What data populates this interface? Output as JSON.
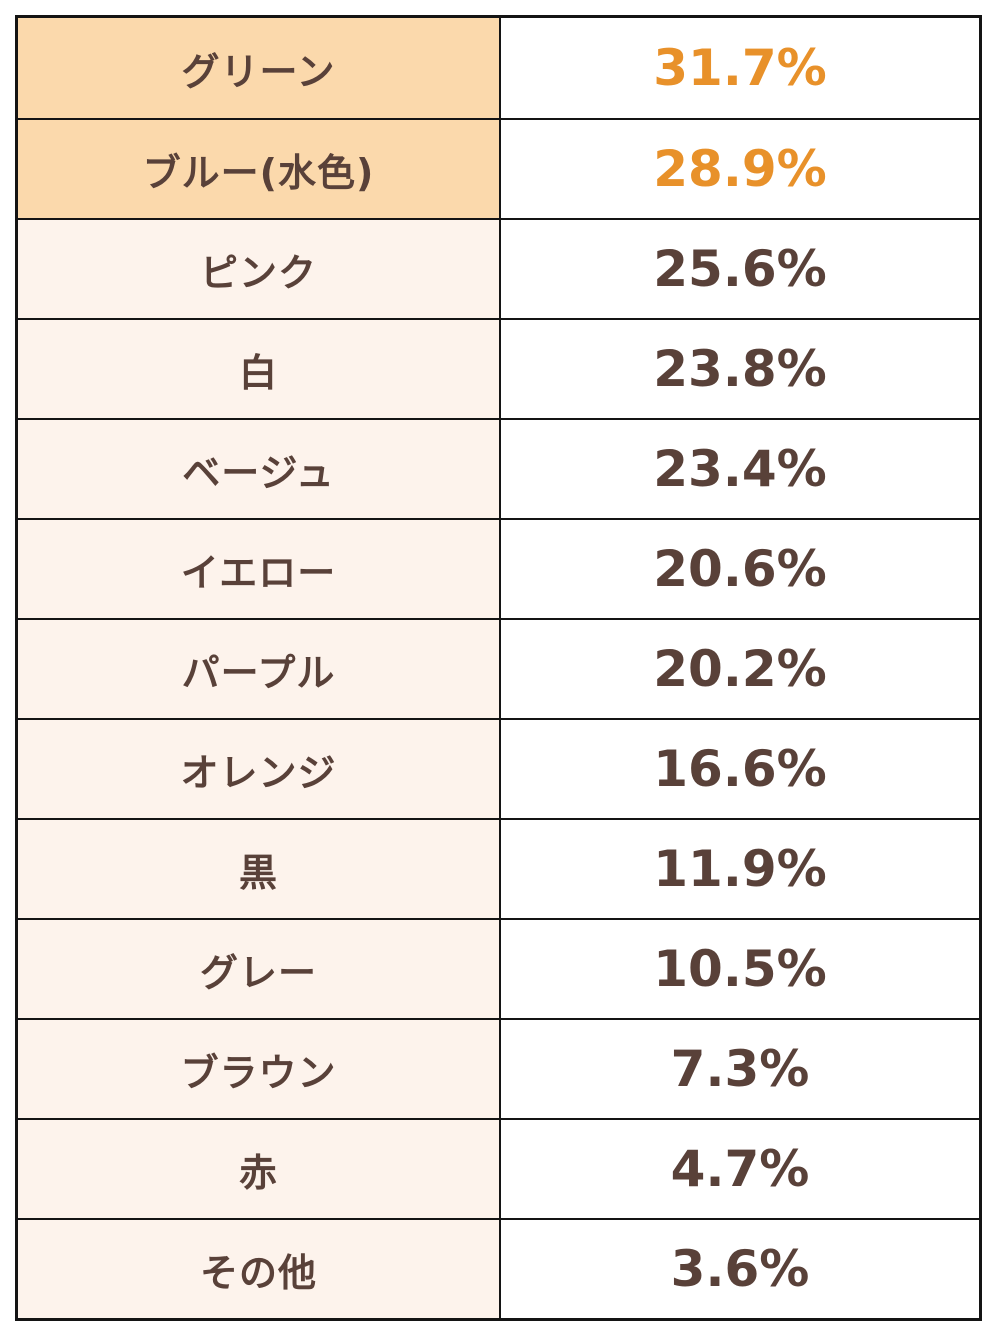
{
  "colors": {
    "highlight-bg": "#fbd9ac",
    "label-bg": "#fdf3ec",
    "text-brown": "#594139",
    "accent-orange": "#e8912a",
    "border": "#141414"
  },
  "table": {
    "rows": [
      {
        "label": "グリーン",
        "value": "31.7%",
        "highlighted": true
      },
      {
        "label": "ブルー(水色)",
        "value": "28.9%",
        "highlighted": true
      },
      {
        "label": "ピンク",
        "value": "25.6%",
        "highlighted": false
      },
      {
        "label": "白",
        "value": "23.8%",
        "highlighted": false
      },
      {
        "label": "ベージュ",
        "value": "23.4%",
        "highlighted": false
      },
      {
        "label": "イエロー",
        "value": "20.6%",
        "highlighted": false
      },
      {
        "label": "パープル",
        "value": "20.2%",
        "highlighted": false
      },
      {
        "label": "オレンジ",
        "value": "16.6%",
        "highlighted": false
      },
      {
        "label": "黒",
        "value": "11.9%",
        "highlighted": false
      },
      {
        "label": "グレー",
        "value": "10.5%",
        "highlighted": false
      },
      {
        "label": "ブラウン",
        "value": "7.3%",
        "highlighted": false
      },
      {
        "label": "赤",
        "value": "4.7%",
        "highlighted": false
      },
      {
        "label": "その他",
        "value": "3.6%",
        "highlighted": false
      }
    ]
  },
  "chart_data": {
    "type": "table",
    "categories": [
      "グリーン",
      "ブルー(水色)",
      "ピンク",
      "白",
      "ベージュ",
      "イエロー",
      "パープル",
      "オレンジ",
      "黒",
      "グレー",
      "ブラウン",
      "赤",
      "その他"
    ],
    "values": [
      31.7,
      28.9,
      25.6,
      23.8,
      23.4,
      20.6,
      20.2,
      16.6,
      11.9,
      10.5,
      7.3,
      4.7,
      3.6
    ],
    "unit": "%",
    "highlighted_categories": [
      "グリーン",
      "ブルー(水色)"
    ],
    "title": "",
    "xlabel": "",
    "ylabel": ""
  }
}
